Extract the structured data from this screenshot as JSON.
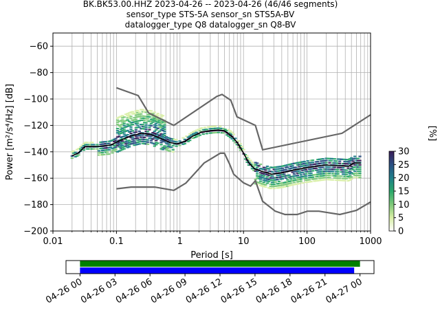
{
  "chart_data": [
    {
      "type": "heatmap",
      "title": "BK.BK53.00.HHZ   2023-04-26 -- 2023-04-26  (46/46 segments)",
      "subtitle_lines": [
        "sensor_type STS-5A sensor_sn STS5A-BV",
        "datalogger_type Q8 datalogger_sn Q8-BV"
      ],
      "xlabel": "Period [s]",
      "ylabel": "Power [m²/s⁴/Hz] [dB]",
      "x_scale": "log",
      "xlim": [
        0.01,
        1000
      ],
      "ylim": [
        -200,
        -50
      ],
      "grid": true,
      "x_ticks": [
        {
          "value": 0.01,
          "label": "0.01"
        },
        {
          "value": 0.1,
          "label": "0.1"
        },
        {
          "value": 1,
          "label": "1"
        },
        {
          "value": 10,
          "label": "10"
        },
        {
          "value": 100,
          "label": "100"
        },
        {
          "value": 1000,
          "label": "1000"
        }
      ],
      "y_ticks": [
        {
          "value": -60,
          "label": "−60"
        },
        {
          "value": -80,
          "label": "−80"
        },
        {
          "value": -100,
          "label": "−100"
        },
        {
          "value": -120,
          "label": "−120"
        },
        {
          "value": -140,
          "label": "−140"
        },
        {
          "value": -160,
          "label": "−160"
        },
        {
          "value": -180,
          "label": "−180"
        },
        {
          "value": -200,
          "label": "−200"
        }
      ],
      "colors": {
        "nlnm_nhnm": "#666666",
        "mean": "#000000"
      },
      "noise_model_high": [
        [
          0.1,
          -91.5
        ],
        [
          0.22,
          -97.4
        ],
        [
          0.32,
          -110.5
        ],
        [
          0.8,
          -120
        ],
        [
          3.8,
          -98
        ],
        [
          4.6,
          -96.5
        ],
        [
          6.3,
          -101
        ],
        [
          7.9,
          -113.5
        ],
        [
          15.4,
          -120
        ],
        [
          20,
          -138.5
        ],
        [
          354.8,
          -126
        ],
        [
          1000,
          -112
        ]
      ],
      "noise_model_low": [
        [
          0.1,
          -168
        ],
        [
          0.17,
          -166.7
        ],
        [
          0.4,
          -166.7
        ],
        [
          0.8,
          -169.2
        ],
        [
          1.24,
          -163.7
        ],
        [
          2.4,
          -148.5
        ],
        [
          4.3,
          -141.1
        ],
        [
          5,
          -141.1
        ],
        [
          6,
          -149
        ],
        [
          7,
          -157
        ],
        [
          10,
          -163.5
        ],
        [
          12.9,
          -166
        ],
        [
          15.4,
          -162
        ],
        [
          20,
          -177.5
        ],
        [
          31.6,
          -185
        ],
        [
          45,
          -187.5
        ],
        [
          70,
          -187.5
        ],
        [
          101,
          -185
        ],
        [
          154,
          -185
        ],
        [
          328,
          -187.5
        ],
        [
          600,
          -184.4
        ],
        [
          1000,
          -178
        ]
      ],
      "mean_psd": [
        [
          0.02,
          -143
        ],
        [
          0.025,
          -141
        ],
        [
          0.032,
          -136
        ],
        [
          0.05,
          -136
        ],
        [
          0.08,
          -135
        ],
        [
          0.12,
          -131
        ],
        [
          0.17,
          -128
        ],
        [
          0.25,
          -126
        ],
        [
          0.35,
          -127
        ],
        [
          0.5,
          -130
        ],
        [
          0.7,
          -133
        ],
        [
          0.9,
          -134
        ],
        [
          1.2,
          -132
        ],
        [
          1.6,
          -128
        ],
        [
          2.2,
          -125
        ],
        [
          3,
          -124
        ],
        [
          4,
          -123.5
        ],
        [
          5,
          -124
        ],
        [
          6.5,
          -128
        ],
        [
          8,
          -133
        ],
        [
          10,
          -141
        ],
        [
          12,
          -148
        ],
        [
          15,
          -153
        ],
        [
          20,
          -155
        ],
        [
          28,
          -157
        ],
        [
          40,
          -156
        ],
        [
          60,
          -154
        ],
        [
          100,
          -152
        ],
        [
          200,
          -150
        ],
        [
          300,
          -150.5
        ],
        [
          450,
          -151
        ],
        [
          550,
          -148.5
        ],
        [
          700,
          -148.5
        ]
      ]
    },
    {
      "type": "colorbar",
      "label": "[%]",
      "range": [
        0,
        30
      ],
      "ticks": [
        {
          "value": 0,
          "label": "0"
        },
        {
          "value": 5,
          "label": "5"
        },
        {
          "value": 10,
          "label": "10"
        },
        {
          "value": 15,
          "label": "15"
        },
        {
          "value": 20,
          "label": "20"
        },
        {
          "value": 25,
          "label": "25"
        },
        {
          "value": 30,
          "label": "30"
        }
      ],
      "colors": [
        "#ffffff",
        "#d9efa6",
        "#7ec97a",
        "#2aa86a",
        "#1f7f8a",
        "#2b4f83",
        "#3a1d58"
      ]
    },
    {
      "type": "timeline",
      "ticks": [
        {
          "hour": 0,
          "label": "04-26 00"
        },
        {
          "hour": 3,
          "label": "04-26 03"
        },
        {
          "hour": 6,
          "label": "04-26 06"
        },
        {
          "hour": 9,
          "label": "04-26 09"
        },
        {
          "hour": 12,
          "label": "04-26 12"
        },
        {
          "hour": 15,
          "label": "04-26 15"
        },
        {
          "hour": 18,
          "label": "04-26 18"
        },
        {
          "hour": 21,
          "label": "04-26 21"
        },
        {
          "hour": 24,
          "label": "04-27 00"
        }
      ],
      "xlim_hours": [
        -1.2,
        25.2
      ],
      "series": [
        {
          "start_hour": 0,
          "end_hour": 24.0,
          "color": "#008000"
        },
        {
          "start_hour": 0,
          "end_hour": 23.5,
          "color": "#0000ff"
        }
      ]
    }
  ]
}
